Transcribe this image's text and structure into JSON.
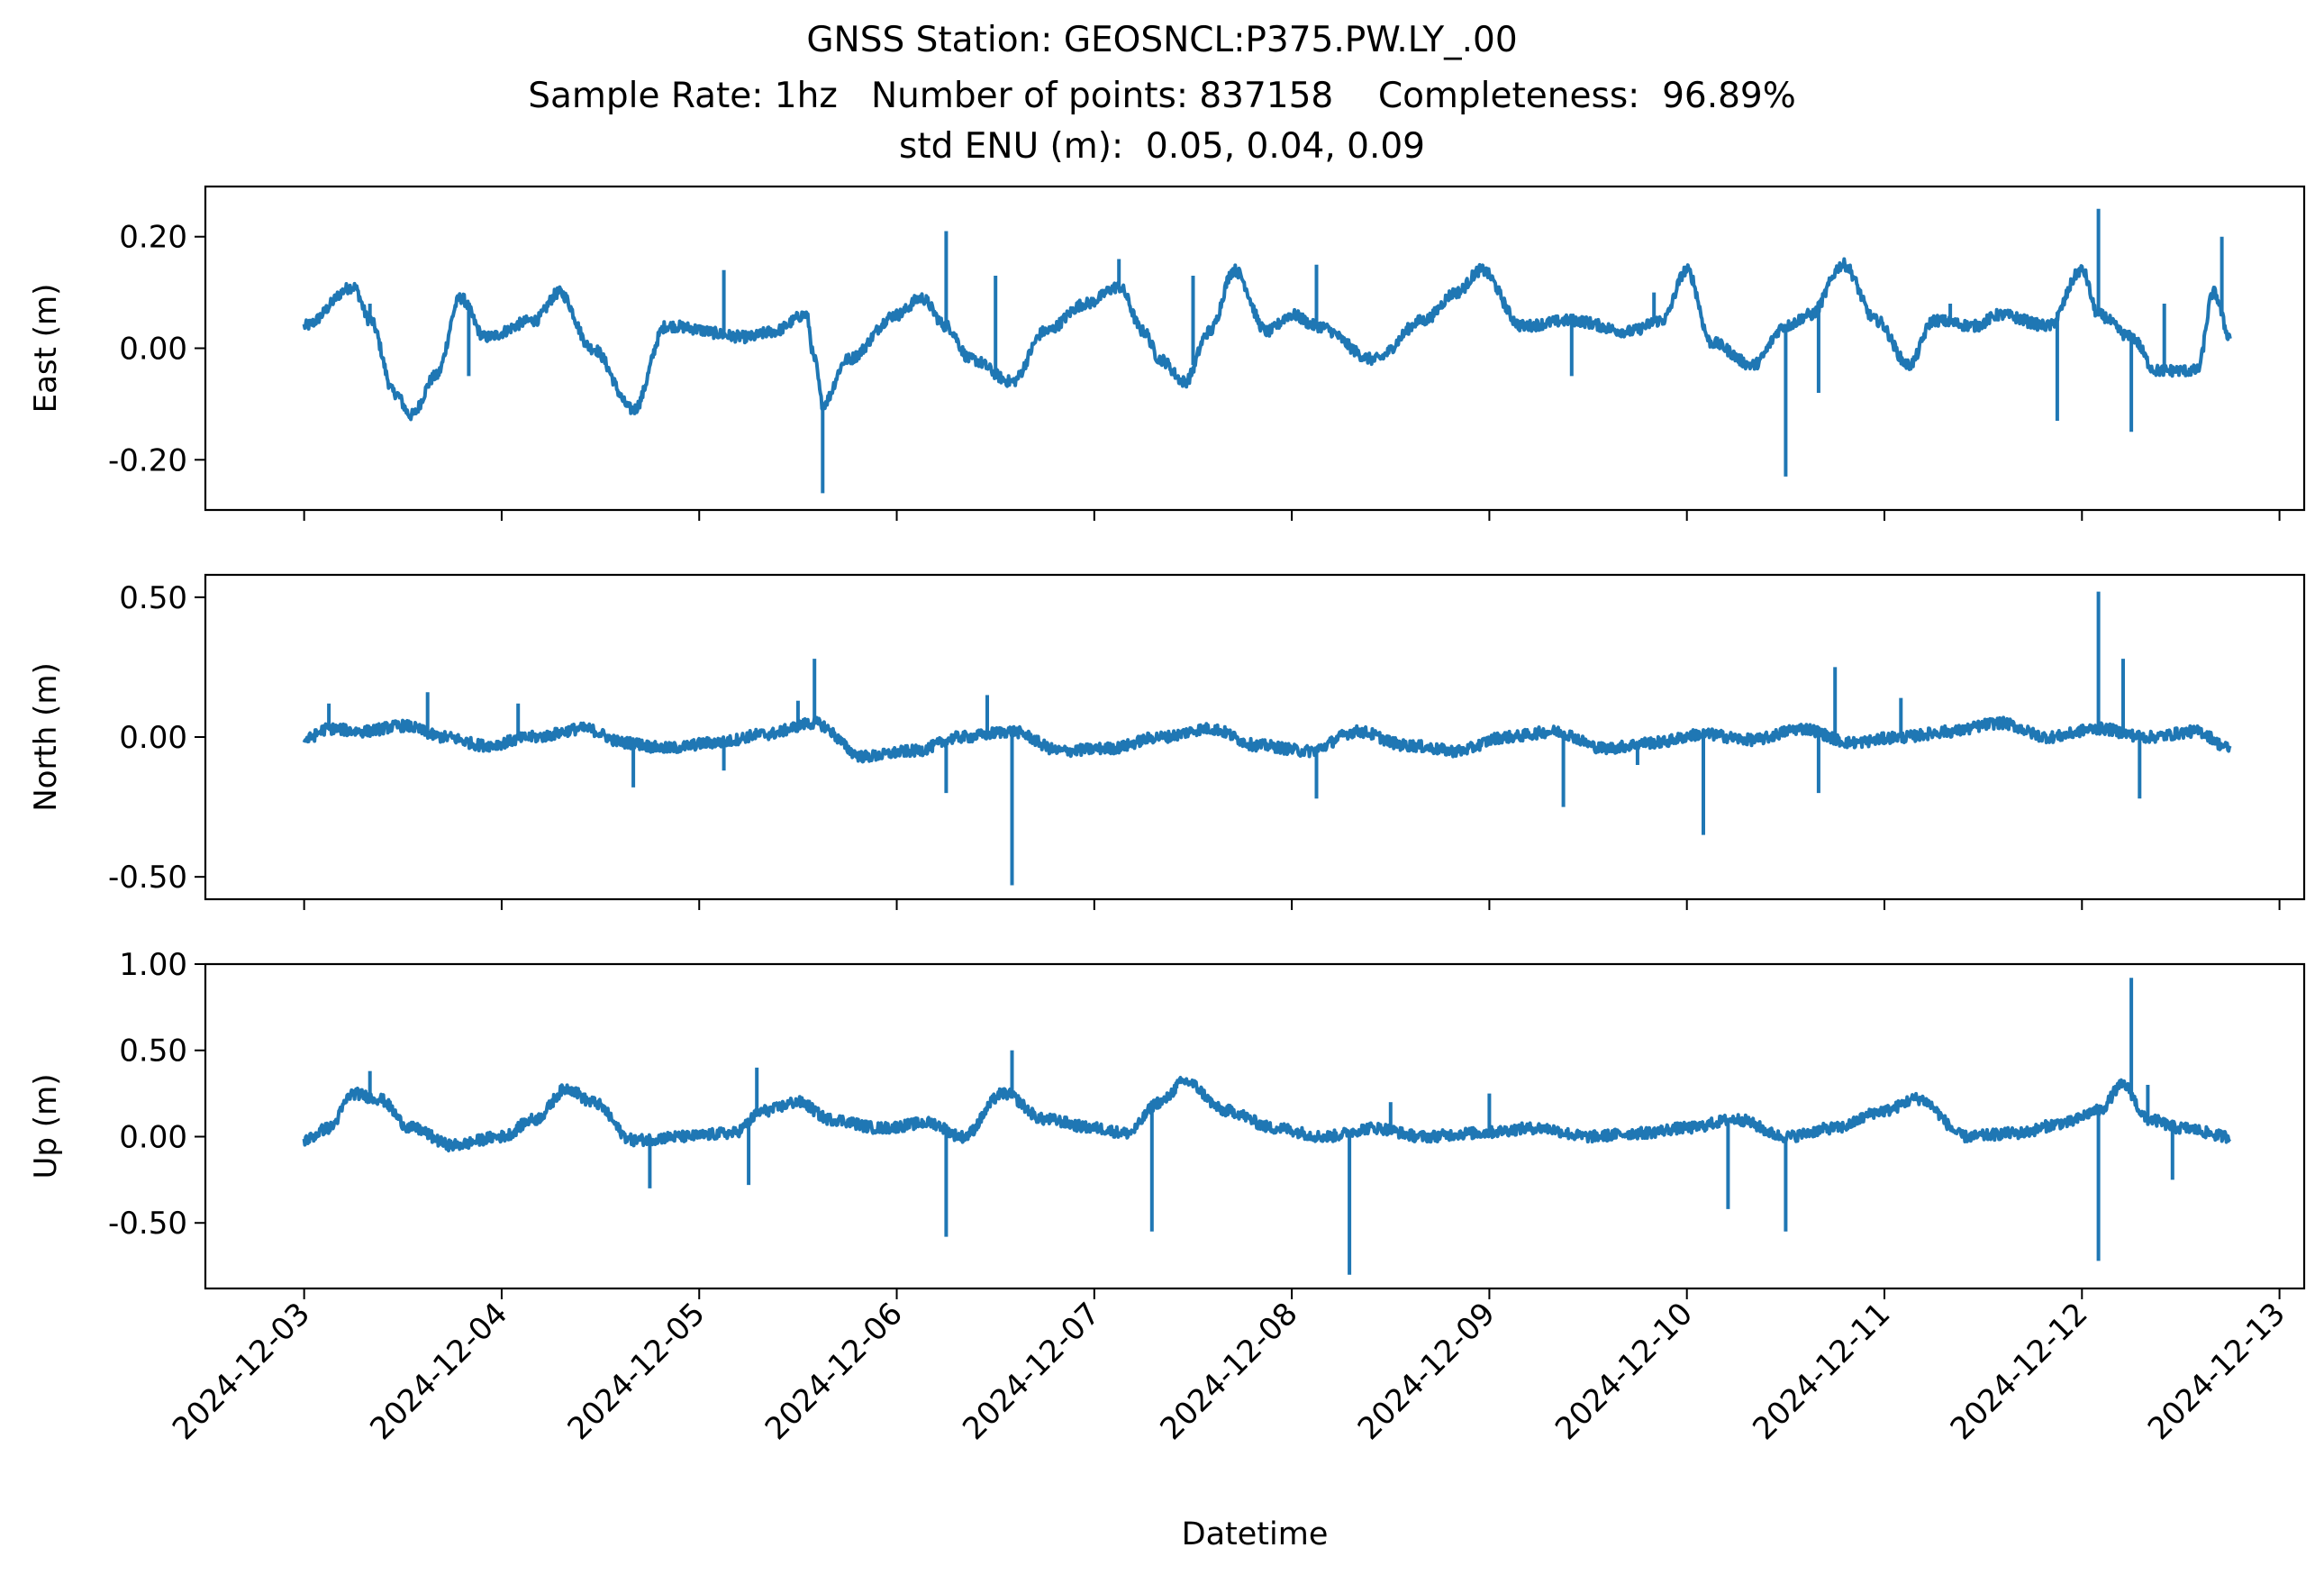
{
  "title_lines": [
    "GNSS Station: GEOSNCL:P375.PW.LY_.00",
    "Sample Rate: 1hz   Number of points: 837158    Completeness:  96.89%",
    "std ENU (m):  0.05, 0.04, 0.09"
  ],
  "colors": {
    "series": "#1f77b4",
    "axes": "#000000"
  },
  "chart_data": [
    {
      "type": "line",
      "ylabel": "East (m)",
      "xlabel": "",
      "xlim": [
        "2024-12-02T12:00",
        "2024-12-13T03:00"
      ],
      "ylim": [
        -0.29,
        0.29
      ],
      "yticks": [
        0.2,
        0.0,
        -0.2
      ],
      "ytick_labels": [
        "0.20",
        "0.00",
        "-0.20"
      ],
      "show_x_tick_labels": false,
      "series": [
        {
          "x": [
            "2024-12-03T00:00",
            "2024-12-03T06:00",
            "2024-12-03T08:00",
            "2024-12-03T11:00",
            "2024-12-03T13:00",
            "2024-12-03T16:00",
            "2024-12-03T19:00",
            "2024-12-03T22:00",
            "2024-12-04T04:00",
            "2024-12-04T07:00",
            "2024-12-04T11:00",
            "2024-12-04T16:00",
            "2024-12-04T20:00",
            "2024-12-05T06:00",
            "2024-12-05T09:00",
            "2024-12-05T13:00",
            "2024-12-05T14:00",
            "2024-12-05T15:00",
            "2024-12-05T18:00",
            "2024-12-06T00:00",
            "2024-12-06T03:00",
            "2024-12-06T06:00",
            "2024-12-06T09:00",
            "2024-12-06T14:00",
            "2024-12-06T18:00",
            "2024-12-06T23:00",
            "2024-12-07T03:00",
            "2024-12-07T06:00",
            "2024-12-07T08:00",
            "2024-12-07T11:00",
            "2024-12-07T14:00",
            "2024-12-07T17:00",
            "2024-12-07T21:00",
            "2024-12-08T00:00",
            "2024-12-08T03:00",
            "2024-12-08T10:00",
            "2024-12-08T16:00",
            "2024-12-08T20:00",
            "2024-12-08T23:00",
            "2024-12-09T04:00",
            "2024-12-09T10:00",
            "2024-12-09T17:00",
            "2024-12-09T21:00",
            "2024-12-10T00:00",
            "2024-12-10T03:00",
            "2024-12-10T08:00",
            "2024-12-10T12:00",
            "2024-12-10T15:00",
            "2024-12-10T19:00",
            "2024-12-10T23:00",
            "2024-12-11T03:00",
            "2024-12-11T06:00",
            "2024-12-11T11:00",
            "2024-12-11T14:00",
            "2024-12-11T20:00",
            "2024-12-12T00:00",
            "2024-12-12T02:00",
            "2024-12-12T06:00",
            "2024-12-12T09:00",
            "2024-12-12T14:00",
            "2024-12-12T16:00",
            "2024-12-12T18:00"
          ],
          "y": [
            0.04,
            0.11,
            0.05,
            -0.08,
            -0.12,
            -0.05,
            0.09,
            0.02,
            0.05,
            0.1,
            0.0,
            -0.11,
            0.04,
            0.02,
            0.03,
            0.06,
            -0.02,
            -0.1,
            -0.02,
            0.06,
            0.09,
            0.04,
            -0.02,
            -0.06,
            0.03,
            0.08,
            0.11,
            0.03,
            -0.02,
            -0.06,
            0.03,
            0.14,
            0.03,
            0.06,
            0.04,
            -0.02,
            0.05,
            0.1,
            0.14,
            0.04,
            0.05,
            0.03,
            0.05,
            0.14,
            0.01,
            -0.03,
            0.04,
            0.06,
            0.15,
            0.05,
            -0.03,
            0.05,
            0.04,
            0.06,
            0.04,
            0.14,
            0.06,
            0.02,
            -0.04,
            -0.04,
            0.1,
            0.02
          ]
        }
      ]
    },
    {
      "type": "line",
      "ylabel": "North (m)",
      "xlabel": "",
      "xlim": [
        "2024-12-02T12:00",
        "2024-12-13T03:00"
      ],
      "ylim": [
        -0.58,
        0.58
      ],
      "yticks": [
        0.5,
        0.0,
        -0.5
      ],
      "ytick_labels": [
        "0.50",
        "0.00",
        "-0.50"
      ],
      "show_x_tick_labels": false,
      "series": [
        {
          "x": [
            "2024-12-03T00:00",
            "2024-12-03T03:00",
            "2024-12-03T07:00",
            "2024-12-03T12:00",
            "2024-12-03T17:00",
            "2024-12-03T22:00",
            "2024-12-04T04:00",
            "2024-12-04T10:00",
            "2024-12-04T15:00",
            "2024-12-04T20:00",
            "2024-12-05T02:00",
            "2024-12-05T08:00",
            "2024-12-05T14:00",
            "2024-12-05T20:00",
            "2024-12-06T02:00",
            "2024-12-06T08:00",
            "2024-12-06T14:00",
            "2024-12-06T20:00",
            "2024-12-07T02:00",
            "2024-12-07T08:00",
            "2024-12-07T14:00",
            "2024-12-07T20:00",
            "2024-12-08T02:00",
            "2024-12-08T08:00",
            "2024-12-08T14:00",
            "2024-12-08T20:00",
            "2024-12-09T02:00",
            "2024-12-09T08:00",
            "2024-12-09T14:00",
            "2024-12-09T20:00",
            "2024-12-10T02:00",
            "2024-12-10T08:00",
            "2024-12-10T14:00",
            "2024-12-10T20:00",
            "2024-12-11T02:00",
            "2024-12-11T08:00",
            "2024-12-11T14:00",
            "2024-12-11T20:00",
            "2024-12-12T02:00",
            "2024-12-12T08:00",
            "2024-12-12T14:00",
            "2024-12-12T18:00"
          ],
          "y": [
            -0.01,
            0.03,
            0.02,
            0.04,
            0.0,
            -0.03,
            0.0,
            0.03,
            -0.02,
            -0.04,
            -0.02,
            0.01,
            0.05,
            -0.07,
            -0.05,
            0.0,
            0.02,
            -0.05,
            -0.04,
            0.0,
            0.03,
            -0.03,
            -0.05,
            0.02,
            -0.03,
            -0.05,
            0.0,
            0.02,
            -0.04,
            -0.02,
            0.01,
            -0.01,
            0.03,
            -0.02,
            0.0,
            0.02,
            0.05,
            0.0,
            0.03,
            0.0,
            0.02,
            -0.04
          ]
        }
      ]
    },
    {
      "type": "line",
      "ylabel": "Up (m)",
      "xlabel": "Datetime",
      "xlim": [
        "2024-12-02T12:00",
        "2024-12-13T03:00"
      ],
      "ylim": [
        -0.88,
        1.0
      ],
      "yticks": [
        1.0,
        0.5,
        0.0,
        -0.5
      ],
      "ytick_labels": [
        "1.00",
        "0.50",
        "0.00",
        "-0.50"
      ],
      "x_tick_labels": [
        "2024-12-03",
        "2024-12-04",
        "2024-12-05",
        "2024-12-06",
        "2024-12-07",
        "2024-12-08",
        "2024-12-09",
        "2024-12-10",
        "2024-12-11",
        "2024-12-12",
        "2024-12-13"
      ],
      "show_x_tick_labels": true,
      "series": [
        {
          "x": [
            "2024-12-03T00:00",
            "2024-12-03T03:00",
            "2024-12-03T06:00",
            "2024-12-03T09:00",
            "2024-12-03T13:00",
            "2024-12-03T18:00",
            "2024-12-04T00:00",
            "2024-12-04T04:00",
            "2024-12-04T08:00",
            "2024-12-04T11:00",
            "2024-12-04T16:00",
            "2024-12-04T22:00",
            "2024-12-05T04:00",
            "2024-12-05T08:00",
            "2024-12-05T12:00",
            "2024-12-05T16:00",
            "2024-12-05T22:00",
            "2024-12-06T04:00",
            "2024-12-06T08:00",
            "2024-12-06T13:00",
            "2024-12-06T18:00",
            "2024-12-07T00:00",
            "2024-12-07T04:00",
            "2024-12-07T08:00",
            "2024-12-07T11:00",
            "2024-12-07T16:00",
            "2024-12-07T22:00",
            "2024-12-08T04:00",
            "2024-12-08T10:00",
            "2024-12-08T16:00",
            "2024-12-08T22:00",
            "2024-12-09T06:00",
            "2024-12-09T12:00",
            "2024-12-09T18:00",
            "2024-12-10T00:00",
            "2024-12-10T06:00",
            "2024-12-10T12:00",
            "2024-12-10T18:00",
            "2024-12-11T00:00",
            "2024-12-11T04:00",
            "2024-12-11T10:00",
            "2024-12-11T16:00",
            "2024-12-11T22:00",
            "2024-12-12T02:00",
            "2024-12-12T05:00",
            "2024-12-12T08:00",
            "2024-12-12T12:00",
            "2024-12-12T18:00"
          ],
          "y": [
            -0.02,
            0.05,
            0.25,
            0.22,
            0.05,
            -0.05,
            0.0,
            0.1,
            0.28,
            0.2,
            -0.02,
            0.0,
            0.02,
            0.15,
            0.2,
            0.1,
            0.05,
            0.08,
            0.0,
            0.25,
            0.1,
            0.05,
            0.02,
            0.2,
            0.32,
            0.15,
            0.05,
            0.0,
            0.05,
            0.0,
            0.02,
            0.05,
            0.0,
            0.02,
            0.05,
            0.1,
            0.0,
            0.05,
            0.15,
            0.22,
            0.0,
            0.02,
            0.08,
            0.15,
            0.3,
            0.1,
            0.05,
            0.0
          ]
        }
      ]
    }
  ],
  "spikes": [
    [
      [
        "2024-12-03T08:00",
        0.08
      ],
      [
        "2024-12-03T20:00",
        -0.05
      ],
      [
        "2024-12-05T03:00",
        0.14
      ],
      [
        "2024-12-05T15:00",
        -0.26
      ],
      [
        "2024-12-06T06:00",
        0.21
      ],
      [
        "2024-12-06T12:00",
        0.13
      ],
      [
        "2024-12-07T03:00",
        0.16
      ],
      [
        "2024-12-07T12:00",
        0.13
      ],
      [
        "2024-12-08T03:00",
        0.15
      ],
      [
        "2024-12-09T10:00",
        -0.05
      ],
      [
        "2024-12-09T20:00",
        0.1
      ],
      [
        "2024-12-10T12:00",
        -0.23
      ],
      [
        "2024-12-10T16:00",
        -0.08
      ],
      [
        "2024-12-11T08:00",
        0.08
      ],
      [
        "2024-12-12T02:00",
        0.25
      ],
      [
        "2024-12-11T21:00",
        -0.13
      ],
      [
        "2024-12-12T06:00",
        -0.15
      ],
      [
        "2024-12-12T10:00",
        0.08
      ],
      [
        "2024-12-12T17:00",
        0.2
      ]
    ],
    [
      [
        "2024-12-03T03:00",
        0.12
      ],
      [
        "2024-12-03T15:00",
        0.16
      ],
      [
        "2024-12-04T02:00",
        0.12
      ],
      [
        "2024-12-04T16:00",
        -0.18
      ],
      [
        "2024-12-05T03:00",
        -0.12
      ],
      [
        "2024-12-05T12:00",
        0.13
      ],
      [
        "2024-12-05T14:00",
        0.28
      ],
      [
        "2024-12-06T06:00",
        -0.2
      ],
      [
        "2024-12-06T14:00",
        -0.53
      ],
      [
        "2024-12-06T11:00",
        0.15
      ],
      [
        "2024-12-08T03:00",
        -0.22
      ],
      [
        "2024-12-09T09:00",
        -0.25
      ],
      [
        "2024-12-10T02:00",
        -0.35
      ],
      [
        "2024-12-10T18:00",
        0.25
      ],
      [
        "2024-12-10T16:00",
        -0.2
      ],
      [
        "2024-12-11T02:00",
        0.14
      ],
      [
        "2024-12-12T02:00",
        0.52
      ],
      [
        "2024-12-12T05:00",
        0.28
      ],
      [
        "2024-12-12T07:00",
        -0.22
      ],
      [
        "2024-12-09T18:00",
        -0.1
      ]
    ],
    [
      [
        "2024-12-03T08:00",
        0.38
      ],
      [
        "2024-12-04T18:00",
        -0.3
      ],
      [
        "2024-12-05T07:00",
        0.4
      ],
      [
        "2024-12-05T06:00",
        -0.28
      ],
      [
        "2024-12-06T06:00",
        -0.58
      ],
      [
        "2024-12-06T14:00",
        0.5
      ],
      [
        "2024-12-07T07:00",
        -0.55
      ],
      [
        "2024-12-07T10:00",
        0.3
      ],
      [
        "2024-12-08T07:00",
        -0.8
      ],
      [
        "2024-12-08T12:00",
        0.2
      ],
      [
        "2024-12-09T00:00",
        0.25
      ],
      [
        "2024-12-10T05:00",
        -0.42
      ],
      [
        "2024-12-10T12:00",
        -0.55
      ],
      [
        "2024-12-12T02:00",
        -0.72
      ],
      [
        "2024-12-12T06:00",
        0.92
      ],
      [
        "2024-12-12T08:00",
        0.3
      ],
      [
        "2024-12-12T11:00",
        -0.25
      ]
    ]
  ]
}
